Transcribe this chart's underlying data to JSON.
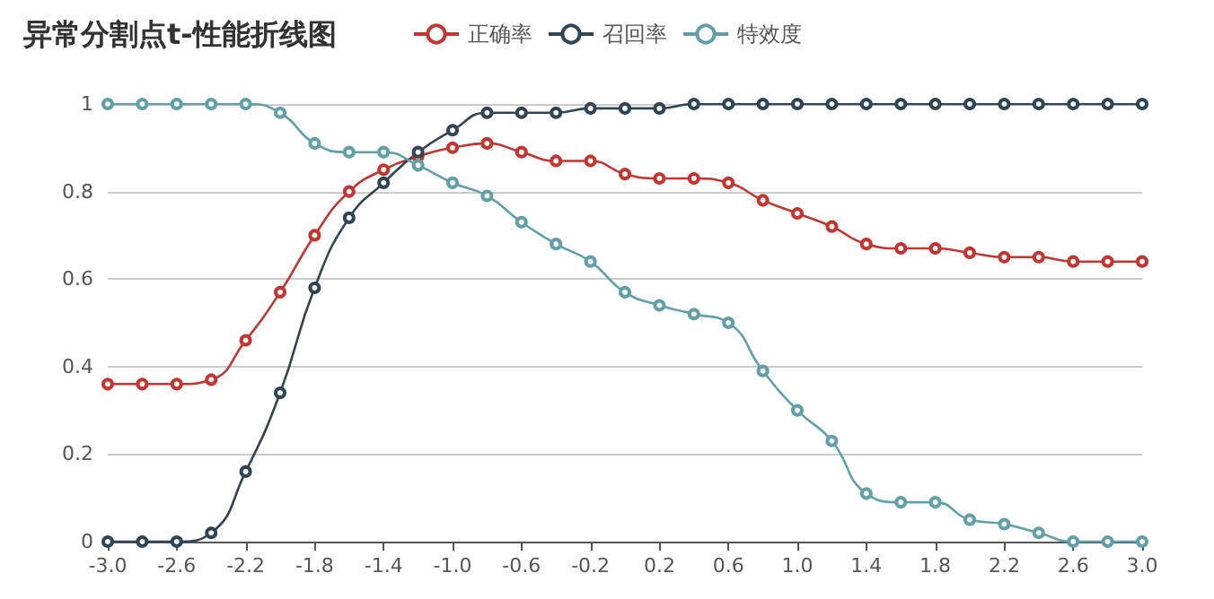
{
  "chart_data": {
    "type": "line",
    "title": "异常分割点t-性能折线图",
    "categories": [
      "-3.0",
      null,
      "-2.6",
      null,
      "-2.2",
      null,
      "-1.8",
      null,
      "-1.4",
      null,
      "-1.0",
      null,
      "-0.6",
      null,
      "-0.2",
      null,
      "0.2",
      null,
      "0.6",
      null,
      "1.0",
      null,
      "1.4",
      null,
      "1.8",
      null,
      "2.2",
      null,
      "2.6",
      null,
      "3.0"
    ],
    "series": [
      {
        "name": "正确率",
        "color": "#c23531",
        "values": [
          0.36,
          0.36,
          0.36,
          0.37,
          0.46,
          0.57,
          0.7,
          0.8,
          0.85,
          0.88,
          0.9,
          0.91,
          0.89,
          0.87,
          0.87,
          0.84,
          0.83,
          0.83,
          0.82,
          0.78,
          0.75,
          0.72,
          0.68,
          0.67,
          0.67,
          0.66,
          0.65,
          0.65,
          0.64,
          0.64,
          0.64
        ]
      },
      {
        "name": "召回率",
        "color": "#2f4554",
        "values": [
          0,
          0,
          0,
          0.02,
          0.16,
          0.34,
          0.58,
          0.74,
          0.82,
          0.89,
          0.94,
          0.98,
          0.98,
          0.98,
          0.99,
          0.99,
          0.99,
          1,
          1,
          1,
          1,
          1,
          1,
          1,
          1,
          1,
          1,
          1,
          1,
          1,
          1
        ]
      },
      {
        "name": "特效度",
        "color": "#61a0a8",
        "values": [
          1,
          1,
          1,
          1,
          1,
          0.98,
          0.91,
          0.89,
          0.89,
          0.86,
          0.82,
          0.79,
          0.73,
          0.68,
          0.64,
          0.57,
          0.54,
          0.52,
          0.5,
          0.39,
          0.3,
          0.23,
          0.11,
          0.09,
          0.09,
          0.05,
          0.04,
          0.02,
          0,
          0,
          0
        ]
      }
    ],
    "ylim": [
      0,
      1
    ],
    "yticks": [
      0,
      0.2,
      0.4,
      0.6,
      0.8,
      1
    ],
    "grid": "y",
    "legend": "top",
    "marker": "circle",
    "line_style": "solid"
  }
}
